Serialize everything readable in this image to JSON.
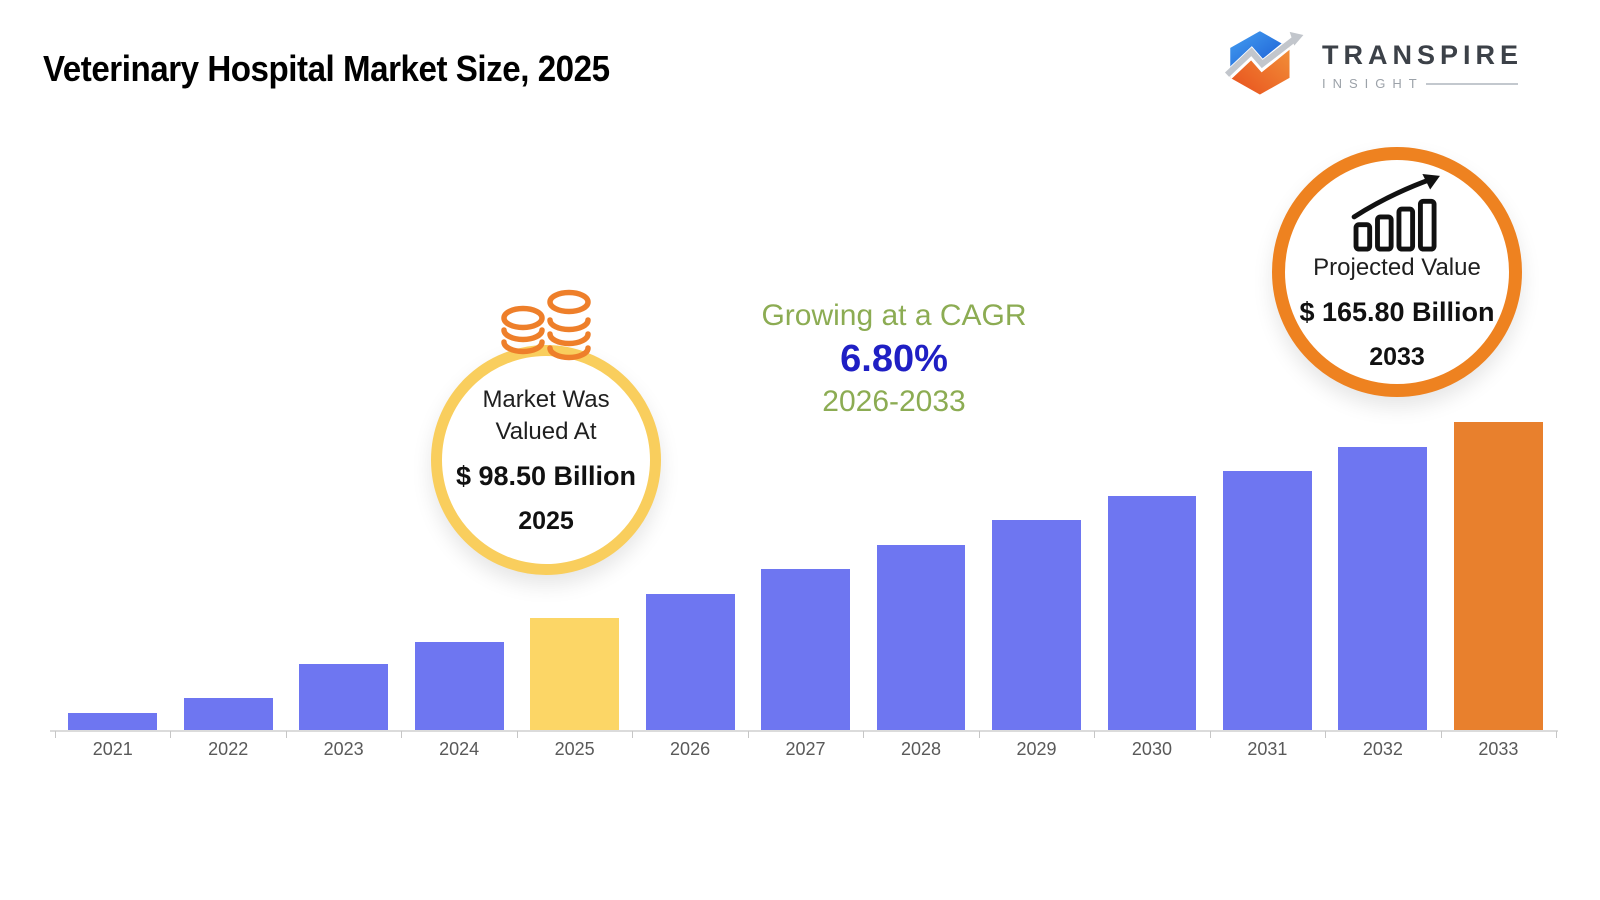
{
  "header": {
    "title": "Veterinary Hospital Market Size, 2025"
  },
  "logo": {
    "brand": "TRANSPIRE",
    "sub": "INSIGHT",
    "icon": "zigzag-arrow-hexagon",
    "colors": {
      "blue": "#2f7ce0",
      "blue_dark": "#1553cf",
      "orange": "#f0641f",
      "orange_light": "#ef8c2e",
      "arrow_gray": "#c2c6cc",
      "brand_text": "#3c4148",
      "sub_text": "#9ca2a9"
    }
  },
  "callout_2025": {
    "icon": "coin-stacks-icon",
    "line1": "Market Was",
    "line2": "Valued At",
    "value": "$ 98.50 Billion",
    "year": "2025",
    "ring_color": "#F9CE5D",
    "icon_color": "#EE7F2A"
  },
  "cagr": {
    "line1": "Growing at a CAGR",
    "value": "6.80%",
    "range": "2026-2033",
    "green": "#8CAC53",
    "blue": "#1F1FC4"
  },
  "callout_2033": {
    "icon": "growth-bars-arrow-icon",
    "label": "Projected Value",
    "value": "$ 165.80 Billion",
    "year": "2033",
    "ring_color": "#EE8220",
    "icon_color": "#111111"
  },
  "chart_data": {
    "type": "bar",
    "title": "Veterinary Hospital Market Size, 2025",
    "unit": "USD Billion",
    "categories": [
      "2021",
      "2022",
      "2023",
      "2024",
      "2025",
      "2026",
      "2027",
      "2028",
      "2029",
      "2030",
      "2031",
      "2032",
      "2033"
    ],
    "values": [
      65.9,
      71.0,
      82.7,
      90.3,
      98.5,
      106.7,
      115.3,
      123.6,
      132.1,
      140.4,
      149.0,
      157.2,
      165.8
    ],
    "labeled_values": {
      "2025": 98.5,
      "2033": 165.8
    },
    "cagr_percent": 6.8,
    "cagr_period": "2026-2033",
    "xlabel": "",
    "ylabel": "",
    "ylim": [
      60,
      170
    ],
    "grid": false,
    "legend": false,
    "bar_colors": {
      "default": "#6E76F1",
      "2025": "#FCD666",
      "2033": "#E8802D"
    },
    "highlight_years": {
      "yellow": "2025",
      "orange": "2033"
    },
    "axis_color": "#DBDBDB",
    "tick_color": "#C6C6C6",
    "label_color": "#595959",
    "annotations": [
      "Market Was Valued At $ 98.50 Billion 2025",
      "Growing at a CAGR 6.80% 2026-2033",
      "Projected Value $ 165.80 Billion 2033"
    ]
  }
}
